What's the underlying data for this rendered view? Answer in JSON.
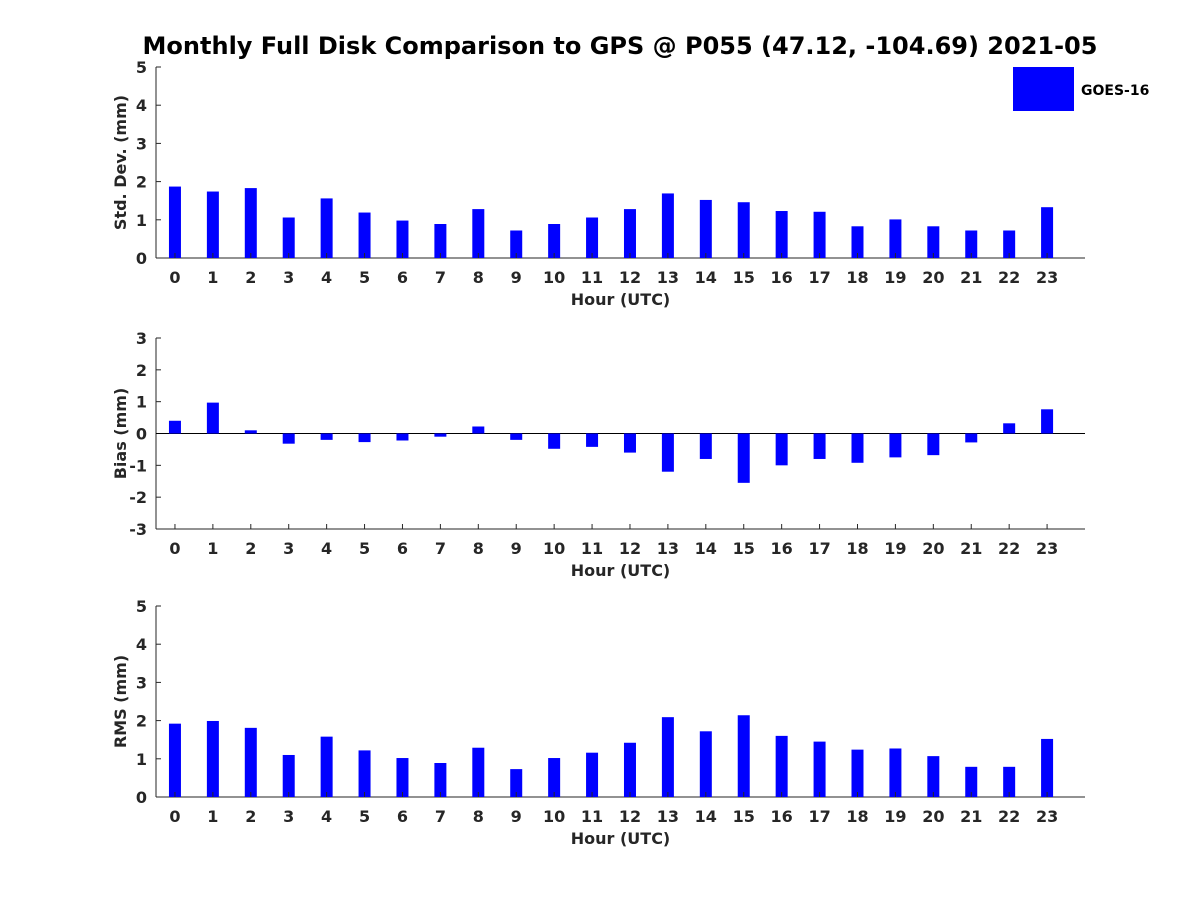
{
  "chart_data": {
    "title": "Monthly Full Disk Comparison to GPS @ P055 (47.12, -104.69) 2021-05",
    "legend": {
      "label": "GOES-16",
      "color": "#0000FF",
      "placement": "top-right"
    },
    "panels": [
      {
        "type": "bar",
        "ylabel": "Std. Dev. (mm)",
        "xlabel": "Hour (UTC)",
        "ylim": [
          0,
          5
        ],
        "yticks": [
          0,
          1,
          2,
          3,
          4,
          5
        ],
        "categories": [
          0,
          1,
          2,
          3,
          4,
          5,
          6,
          7,
          8,
          9,
          10,
          11,
          12,
          13,
          14,
          15,
          16,
          17,
          18,
          19,
          20,
          21,
          22,
          23
        ],
        "series": [
          {
            "name": "GOES-16",
            "values": [
              1.87,
              1.74,
              1.83,
              1.06,
              1.56,
              1.19,
              0.98,
              0.89,
              1.28,
              0.72,
              0.89,
              1.06,
              1.28,
              1.69,
              1.52,
              1.46,
              1.23,
              1.21,
              0.83,
              1.01,
              0.83,
              0.72,
              0.72,
              1.33
            ]
          }
        ]
      },
      {
        "type": "bar",
        "ylabel": "Bias (mm)",
        "xlabel": "Hour (UTC)",
        "ylim": [
          -3,
          3
        ],
        "yticks": [
          -3,
          -2,
          -1,
          0,
          1,
          2,
          3
        ],
        "zeroline": true,
        "categories": [
          0,
          1,
          2,
          3,
          4,
          5,
          6,
          7,
          8,
          9,
          10,
          11,
          12,
          13,
          14,
          15,
          16,
          17,
          18,
          19,
          20,
          21,
          22,
          23
        ],
        "series": [
          {
            "name": "GOES-16",
            "values": [
              0.4,
              0.97,
              0.1,
              -0.32,
              -0.2,
              -0.27,
              -0.22,
              -0.1,
              0.22,
              -0.2,
              -0.48,
              -0.42,
              -0.6,
              -1.2,
              -0.8,
              -1.55,
              -1.0,
              -0.8,
              -0.92,
              -0.75,
              -0.68,
              -0.28,
              0.32,
              0.76
            ]
          }
        ]
      },
      {
        "type": "bar",
        "ylabel": "RMS (mm)",
        "xlabel": "Hour (UTC)",
        "ylim": [
          0,
          5
        ],
        "yticks": [
          0,
          1,
          2,
          3,
          4,
          5
        ],
        "categories": [
          0,
          1,
          2,
          3,
          4,
          5,
          6,
          7,
          8,
          9,
          10,
          11,
          12,
          13,
          14,
          15,
          16,
          17,
          18,
          19,
          20,
          21,
          22,
          23
        ],
        "series": [
          {
            "name": "GOES-16",
            "values": [
              1.92,
              1.99,
              1.81,
              1.1,
              1.58,
              1.22,
              1.02,
              0.89,
              1.29,
              0.73,
              1.02,
              1.16,
              1.42,
              2.09,
              1.72,
              2.14,
              1.6,
              1.45,
              1.24,
              1.27,
              1.07,
              0.79,
              0.79,
              1.52
            ]
          }
        ]
      }
    ]
  }
}
